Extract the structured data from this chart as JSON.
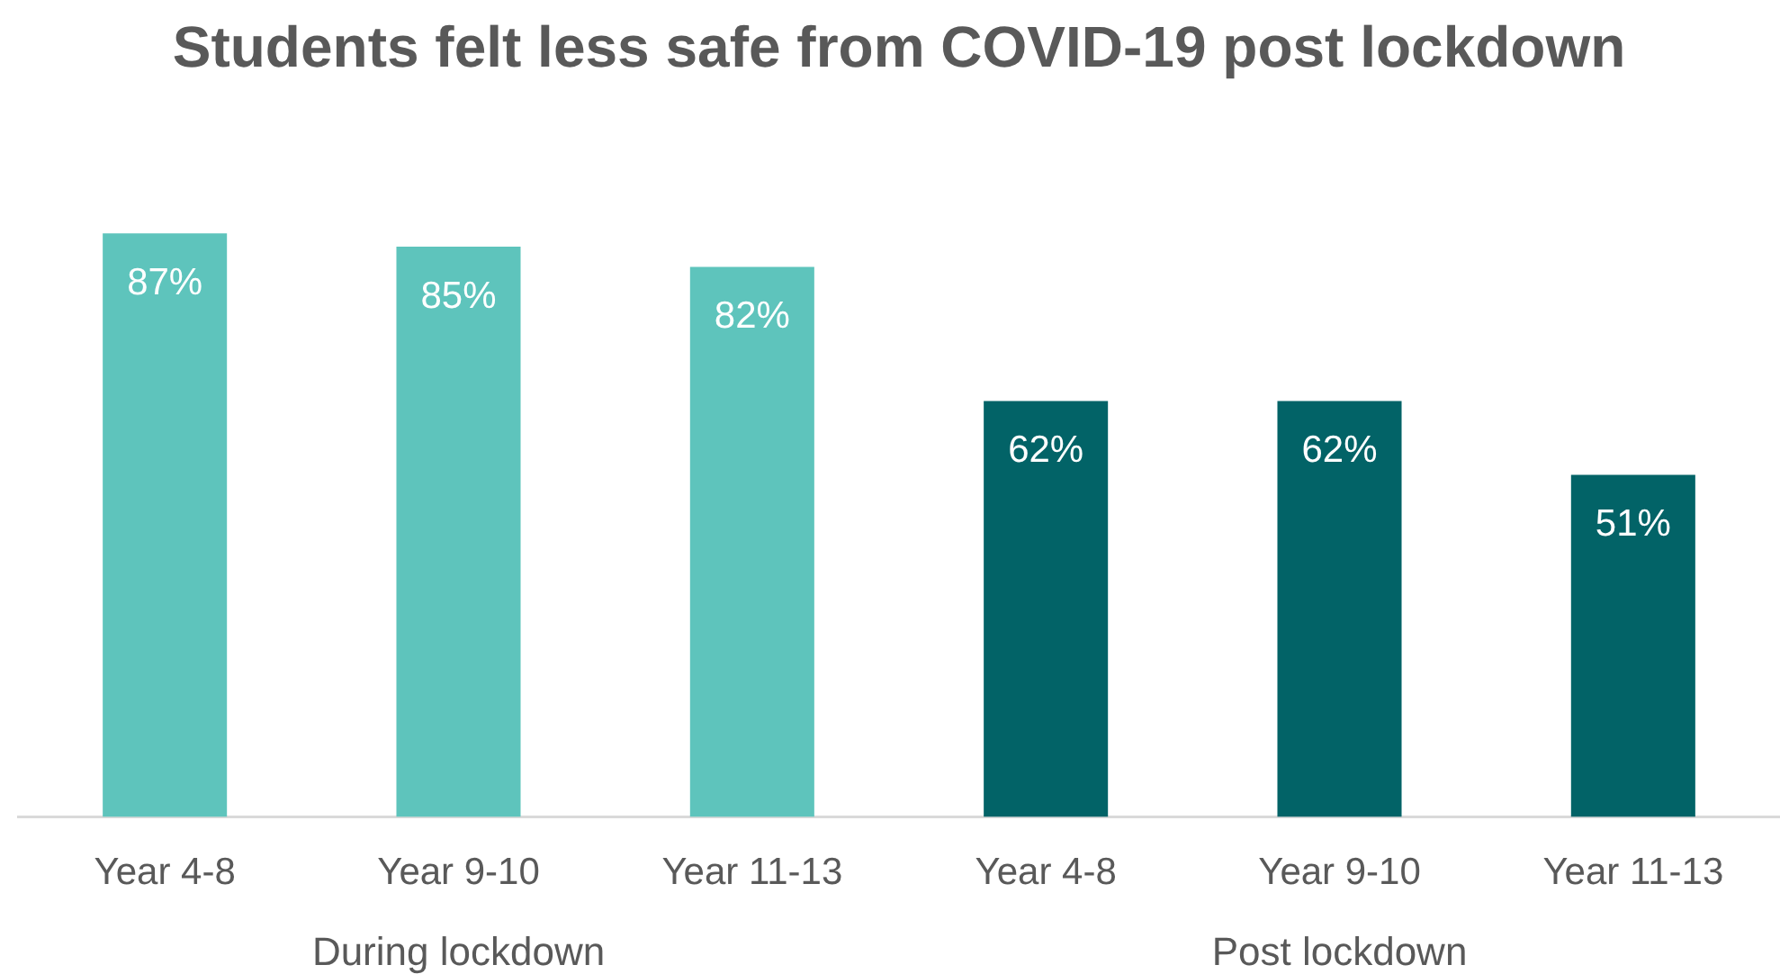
{
  "chart_data": {
    "type": "bar",
    "title": "Students felt less safe from COVID-19 post lockdown",
    "categories": [
      "Year 4-8",
      "Year 9-10",
      "Year 11-13",
      "Year 4-8",
      "Year 9-10",
      "Year 11-13"
    ],
    "values": [
      87,
      85,
      82,
      62,
      62,
      51
    ],
    "colors": [
      "#5ec4bc",
      "#5ec4bc",
      "#5ec4bc",
      "#026367",
      "#026367",
      "#026367"
    ],
    "value_labels": [
      "87%",
      "85%",
      "82%",
      "62%",
      "62%",
      "51%"
    ],
    "annotations": [
      "During lockdown",
      "Post lockdown"
    ]
  }
}
